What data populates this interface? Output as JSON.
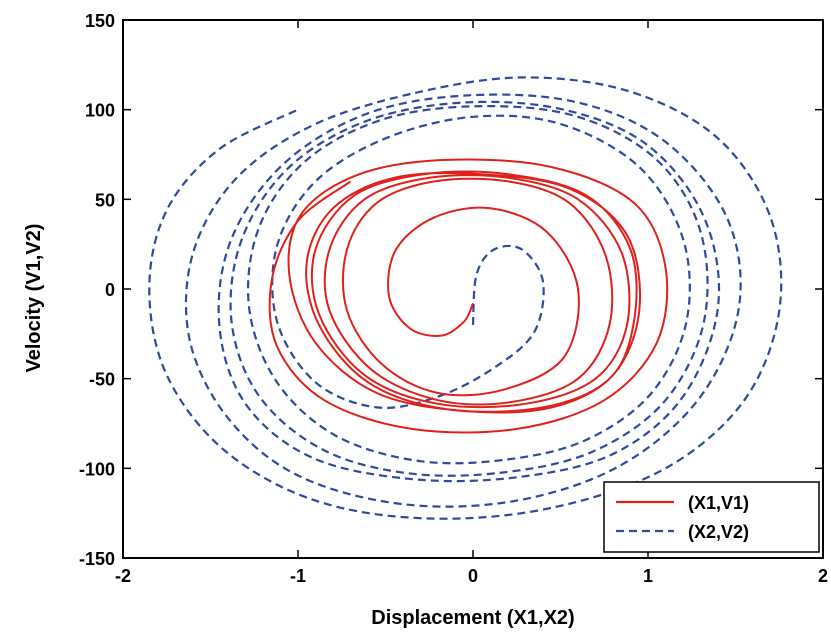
{
  "chart_data": {
    "type": "line",
    "title": "",
    "xlabel": "Displacement (X1,X2)",
    "ylabel": "Velocity (V1,V2)",
    "xlim": [
      -2,
      2
    ],
    "ylim": [
      -150,
      150
    ],
    "xticks": [
      -2,
      -1,
      0,
      1,
      2
    ],
    "xtick_labels": [
      "-2",
      "-1",
      "0",
      "1",
      "2"
    ],
    "yticks": [
      -150,
      -100,
      -50,
      0,
      50,
      100,
      150
    ],
    "ytick_labels": [
      "-150",
      "-100",
      "-50",
      "0",
      "50",
      "100",
      "150"
    ],
    "grid": false,
    "legend_position": "bottom-right",
    "series": [
      {
        "name": "(X1,V1)",
        "color": "#e0201b",
        "dash": "solid",
        "points": [
          [
            0,
            -8
          ],
          [
            -0.05,
            -18
          ],
          [
            -0.18,
            -26
          ],
          [
            -0.36,
            -22
          ],
          [
            -0.48,
            -4
          ],
          [
            -0.44,
            22
          ],
          [
            -0.22,
            40
          ],
          [
            0.1,
            45
          ],
          [
            0.42,
            32
          ],
          [
            0.6,
            0
          ],
          [
            0.52,
            -38
          ],
          [
            0.18,
            -56
          ],
          [
            -0.2,
            -58
          ],
          [
            -0.52,
            -42
          ],
          [
            -0.72,
            -12
          ],
          [
            -0.72,
            22
          ],
          [
            -0.55,
            48
          ],
          [
            -0.22,
            60
          ],
          [
            0.2,
            60
          ],
          [
            0.55,
            48
          ],
          [
            0.76,
            18
          ],
          [
            0.78,
            -20
          ],
          [
            0.6,
            -50
          ],
          [
            0.22,
            -63
          ],
          [
            -0.2,
            -62
          ],
          [
            -0.58,
            -45
          ],
          [
            -0.82,
            -12
          ],
          [
            -0.82,
            22
          ],
          [
            -0.62,
            50
          ],
          [
            -0.25,
            62
          ],
          [
            0.2,
            62
          ],
          [
            0.6,
            50
          ],
          [
            0.85,
            20
          ],
          [
            0.88,
            -20
          ],
          [
            0.7,
            -50
          ],
          [
            0.3,
            -64
          ],
          [
            -0.2,
            -64
          ],
          [
            -0.62,
            -48
          ],
          [
            -0.88,
            -14
          ],
          [
            -0.9,
            22
          ],
          [
            -0.68,
            52
          ],
          [
            -0.28,
            64
          ],
          [
            0.2,
            64
          ],
          [
            0.65,
            52
          ],
          [
            0.9,
            22
          ],
          [
            0.92,
            -18
          ],
          [
            0.78,
            -50
          ],
          [
            0.4,
            -66
          ],
          [
            -0.15,
            -67
          ],
          [
            -0.6,
            -52
          ],
          [
            -0.88,
            -20
          ],
          [
            -0.95,
            15
          ],
          [
            -0.8,
            45
          ],
          [
            -0.45,
            62
          ],
          [
            0.05,
            64
          ],
          [
            0.55,
            56
          ],
          [
            0.88,
            30
          ],
          [
            0.95,
            -12
          ],
          [
            0.8,
            -48
          ],
          [
            0.45,
            -66
          ],
          [
            -0.05,
            -68
          ],
          [
            -0.55,
            -58
          ],
          [
            -0.9,
            -30
          ],
          [
            -1.05,
            8
          ],
          [
            -0.98,
            42
          ],
          [
            -0.65,
            64
          ],
          [
            -0.15,
            72
          ],
          [
            0.45,
            68
          ],
          [
            0.92,
            48
          ],
          [
            1.1,
            12
          ],
          [
            1.05,
            -30
          ],
          [
            0.75,
            -62
          ],
          [
            0.25,
            -78
          ],
          [
            -0.35,
            -78
          ],
          [
            -0.85,
            -62
          ],
          [
            -1.12,
            -32
          ],
          [
            -1.15,
            5
          ],
          [
            -1.0,
            38
          ],
          [
            -0.7,
            60
          ]
        ]
      },
      {
        "name": "(X2,V2)",
        "color": "#2e4a9c",
        "dash": "dashed",
        "points": [
          [
            0,
            -20
          ],
          [
            0.02,
            8
          ],
          [
            0.12,
            22
          ],
          [
            0.28,
            22
          ],
          [
            0.4,
            4
          ],
          [
            0.35,
            -24
          ],
          [
            0.12,
            -44
          ],
          [
            -0.2,
            -60
          ],
          [
            -0.55,
            -66
          ],
          [
            -0.9,
            -52
          ],
          [
            -1.12,
            -18
          ],
          [
            -1.12,
            24
          ],
          [
            -0.9,
            60
          ],
          [
            -0.5,
            84
          ],
          [
            0,
            96
          ],
          [
            0.5,
            92
          ],
          [
            0.95,
            68
          ],
          [
            1.2,
            28
          ],
          [
            1.22,
            -18
          ],
          [
            1.02,
            -58
          ],
          [
            0.65,
            -84
          ],
          [
            0.2,
            -95
          ],
          [
            -0.3,
            -96
          ],
          [
            -0.78,
            -82
          ],
          [
            -1.12,
            -52
          ],
          [
            -1.28,
            -10
          ],
          [
            -1.22,
            35
          ],
          [
            -0.95,
            72
          ],
          [
            -0.5,
            95
          ],
          [
            0.05,
            102
          ],
          [
            0.6,
            96
          ],
          [
            1.05,
            72
          ],
          [
            1.3,
            32
          ],
          [
            1.32,
            -18
          ],
          [
            1.1,
            -62
          ],
          [
            0.7,
            -90
          ],
          [
            0.2,
            -102
          ],
          [
            -0.35,
            -103
          ],
          [
            -0.85,
            -90
          ],
          [
            -1.22,
            -60
          ],
          [
            -1.38,
            -18
          ],
          [
            -1.32,
            28
          ],
          [
            -1.05,
            68
          ],
          [
            -0.6,
            94
          ],
          [
            -0.05,
            104
          ],
          [
            0.52,
            100
          ],
          [
            1.0,
            80
          ],
          [
            1.32,
            40
          ],
          [
            1.4,
            -10
          ],
          [
            1.2,
            -60
          ],
          [
            0.8,
            -92
          ],
          [
            0.25,
            -105
          ],
          [
            -0.35,
            -106
          ],
          [
            -0.92,
            -94
          ],
          [
            -1.3,
            -64
          ],
          [
            -1.45,
            -20
          ],
          [
            -1.38,
            28
          ],
          [
            -1.08,
            70
          ],
          [
            -0.6,
            98
          ],
          [
            -0.02,
            108
          ],
          [
            0.6,
            104
          ],
          [
            1.1,
            82
          ],
          [
            1.45,
            40
          ],
          [
            1.52,
            -10
          ],
          [
            1.3,
            -60
          ],
          [
            0.85,
            -98
          ],
          [
            0.25,
            -118
          ],
          [
            -0.4,
            -120
          ],
          [
            -1.0,
            -104
          ],
          [
            -1.4,
            -72
          ],
          [
            -1.62,
            -28
          ],
          [
            -1.6,
            20
          ],
          [
            -1.35,
            62
          ],
          [
            -0.9,
            92
          ],
          [
            -0.3,
            110
          ],
          [
            0.3,
            118
          ],
          [
            0.9,
            110
          ],
          [
            1.4,
            84
          ],
          [
            1.7,
            40
          ],
          [
            1.75,
            -12
          ],
          [
            1.55,
            -62
          ],
          [
            1.1,
            -100
          ],
          [
            0.45,
            -122
          ],
          [
            -0.25,
            -128
          ],
          [
            -0.9,
            -118
          ],
          [
            -1.42,
            -90
          ],
          [
            -1.75,
            -48
          ],
          [
            -1.85,
            0
          ],
          [
            -1.75,
            44
          ],
          [
            -1.45,
            78
          ],
          [
            -1.0,
            100
          ]
        ]
      }
    ]
  }
}
